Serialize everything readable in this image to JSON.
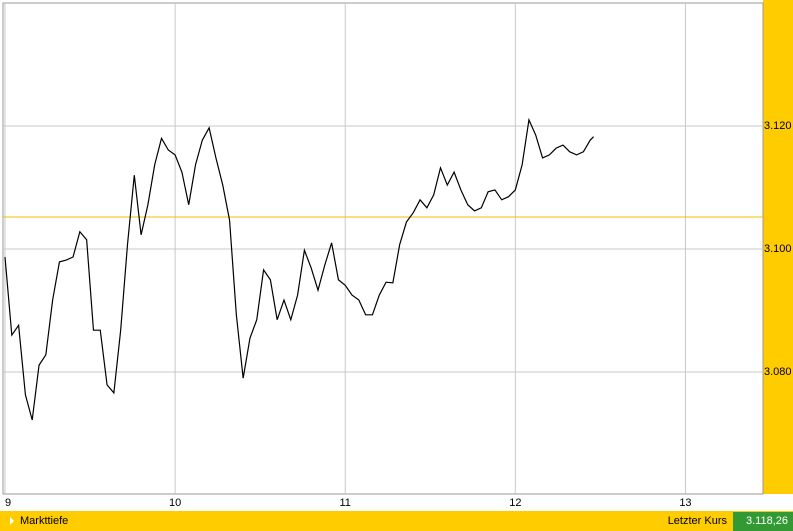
{
  "chart_data": {
    "type": "line",
    "x": [
      9,
      9.04,
      9.08,
      9.12,
      9.16,
      9.2,
      9.24,
      9.28,
      9.32,
      9.36,
      9.4,
      9.44,
      9.48,
      9.52,
      9.56,
      9.6,
      9.64,
      9.68,
      9.72,
      9.76,
      9.8,
      9.84,
      9.88,
      9.92,
      9.96,
      10,
      10.04,
      10.08,
      10.12,
      10.16,
      10.2,
      10.24,
      10.28,
      10.32,
      10.36,
      10.4,
      10.44,
      10.48,
      10.52,
      10.56,
      10.6,
      10.64,
      10.68,
      10.72,
      10.76,
      10.8,
      10.84,
      10.88,
      10.92,
      10.96,
      11,
      11.04,
      11.08,
      11.12,
      11.16,
      11.2,
      11.24,
      11.28,
      11.32,
      11.36,
      11.4,
      11.44,
      11.48,
      11.52,
      11.56,
      11.6,
      11.64,
      11.68,
      11.72,
      11.76,
      11.8,
      11.84,
      11.88,
      11.92,
      11.96,
      12,
      12.04,
      12.08,
      12.12,
      12.16,
      12.2,
      12.24,
      12.28,
      12.32,
      12.36,
      12.4,
      12.44,
      12.46
    ],
    "series": [
      {
        "color": "#000000",
        "values": [
          3098.7,
          3086.0,
          3087.6,
          3076.3,
          3072.2,
          3081.1,
          3082.8,
          3091.7,
          3097.9,
          3098.2,
          3098.7,
          3102.8,
          3101.5,
          3086.8,
          3086.8,
          3077.9,
          3076.6,
          3086.8,
          3100.7,
          3112.0,
          3102.3,
          3107.2,
          3113.7,
          3118.0,
          3116.1,
          3115.3,
          3112.5,
          3107.2,
          3113.7,
          3117.7,
          3119.7,
          3114.8,
          3110.4,
          3104.7,
          3089.3,
          3079.0,
          3085.5,
          3088.5,
          3096.6,
          3095.0,
          3088.5,
          3091.7,
          3088.5,
          3092.5,
          3099.8,
          3096.9,
          3093.3,
          3097.4,
          3101.0,
          3095.0,
          3094.1,
          3092.5,
          3091.7,
          3089.3,
          3089.3,
          3092.5,
          3094.6,
          3094.5,
          3100.7,
          3104.4,
          3105.9,
          3108.0,
          3106.7,
          3108.8,
          3113.2,
          3110.4,
          3112.5,
          3109.6,
          3107.2,
          3106.2,
          3106.7,
          3109.3,
          3109.6,
          3108.0,
          3108.5,
          3109.6,
          3113.7,
          3121.0,
          3118.5,
          3114.8,
          3115.3,
          3116.4,
          3116.9,
          3115.8,
          3115.3,
          3115.8,
          3117.7,
          3118.26
        ]
      }
    ],
    "reference_line": {
      "value": 3105.2,
      "color": "#f0c000"
    },
    "xlim": [
      9,
      13.45
    ],
    "xticks": [
      9,
      10,
      11,
      12,
      13
    ],
    "ylim": [
      3060,
      3140
    ],
    "yticks": [
      {
        "value": 3080,
        "label": "3.080"
      },
      {
        "value": 3100,
        "label": "3.100"
      },
      {
        "value": 3120,
        "label": "3.120"
      }
    ],
    "grid": true
  },
  "footer": {
    "link": "Markttiefe",
    "last_label": "Letzter Kurs",
    "last_value": "3.118,26"
  }
}
